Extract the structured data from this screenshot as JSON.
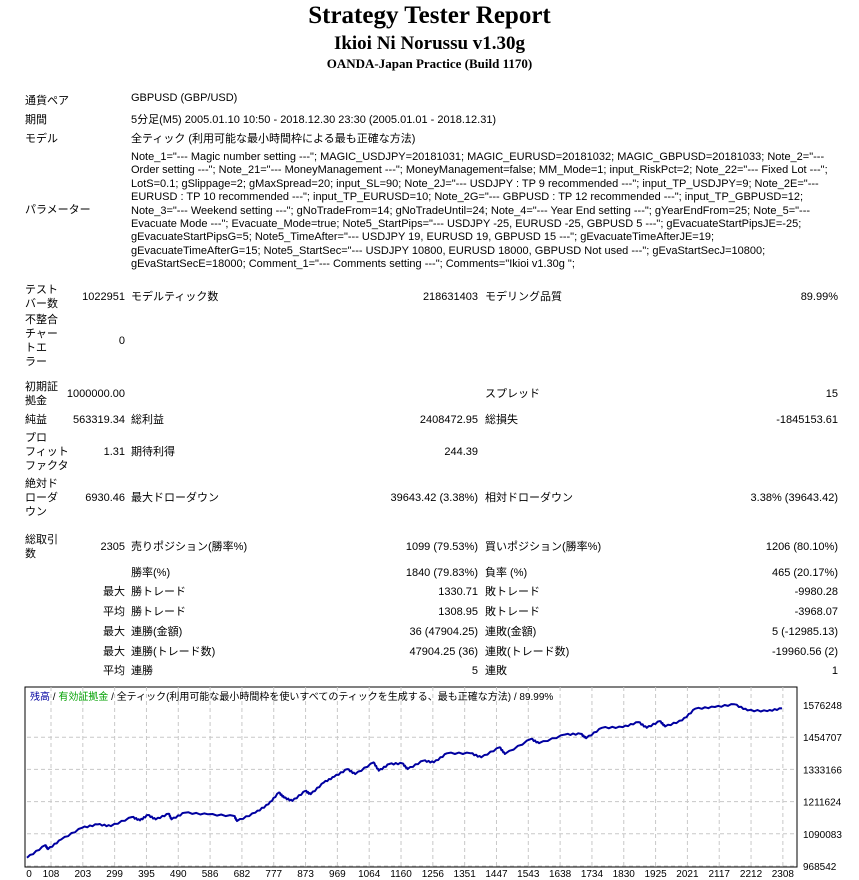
{
  "header": {
    "title": "Strategy Tester Report",
    "ea_name": "Ikioi Ni Norussu v1.30g",
    "server": "OANDA-Japan Practice (Build 1170)"
  },
  "info": {
    "symbol_label": "通貨ペア",
    "symbol": "GBPUSD (GBP/USD)",
    "period_label": "期間",
    "period": "5分足(M5) 2005.01.10 10:50 - 2018.12.30 23:30 (2005.01.01 - 2018.12.31)",
    "model_label": "モデル",
    "model": "全ティック (利用可能な最小時間枠による最も正確な方法)",
    "params_label": "パラメーター",
    "params": "Note_1=\"--- Magic number setting ---\"; MAGIC_USDJPY=20181031; MAGIC_EURUSD=20181032; MAGIC_GBPUSD=20181033; Note_2=\"--- Order setting ---\"; Note_21=\"--- MoneyManagement ---\"; MoneyManagement=false; MM_Mode=1; input_RiskPct=2; Note_22=\"--- Fixed Lot ---\"; LotS=0.1; gSlippage=2; gMaxSpread=20; input_SL=90; Note_2J=\"--- USDJPY : TP 9 recommended ---\"; input_TP_USDJPY=9; Note_2E=\"--- EURUSD : TP 10 recommended ---\"; input_TP_EURUSD=10; Note_2G=\"--- GBPUSD : TP 12 recommended ---\"; input_TP_GBPUSD=12; Note_3=\"--- Weekend setting ---\"; gNoTradeFrom=14; gNoTradeUntil=24; Note_4=\"--- Year End setting ---\"; gYearEndFrom=25; Note_5=\"--- Evacuate Mode ---\"; Evacuate_Mode=true; Note5_StartPips=\"--- USDJPY -25, EURUSD -25, GBPUSD 5 ---\"; gEvacuateStartPipsJE=-25; gEvacuateStartPipsG=5; Note5_TimeAfter=\"--- USDJPY 19, EURUSD 19, GBPUSD 15 ---\"; gEvacuateTimeAfterJE=19; gEvacuateTimeAfterG=15; Note5_StartSec=\"--- USDJPY 10800, EURUSD 18000, GBPUSD Not used ---\"; gEvaStartSecJ=10800; gEvaStartSecE=18000; Comment_1=\"--- Comments setting ---\"; Comments=\"Ikioi v1.30g \";"
  },
  "stats": [
    [
      "テスト\nバー数",
      "1022951",
      "モデルティック数",
      "218631403",
      "モデリング品質",
      "89.99%"
    ],
    [
      "不整合\nチャー\nトエ\nラー",
      "0",
      "",
      "",
      "",
      ""
    ],
    [
      "初期証\n拠金",
      "1000000.00",
      "",
      "",
      "スプレッド",
      "15"
    ],
    [
      "純益",
      "563319.34",
      "総利益",
      "2408472.95",
      "総損失",
      "-1845153.61"
    ],
    [
      "プロ\nフィット\nファクタ",
      "1.31",
      "期待利得",
      "244.39",
      "",
      ""
    ],
    [
      "絶対ド\nローダ\nウン",
      "6930.46",
      "最大ドローダウン",
      "39643.42 (3.38%)",
      "相対ドローダウン",
      "3.38% (39643.42)"
    ],
    [
      "総取引\n数",
      "2305",
      "売りポジション(勝率%)",
      "1099 (79.53%)",
      "買いポジション(勝率%)",
      "1206 (80.10%)"
    ],
    [
      "",
      "",
      "勝率(%)",
      "1840 (79.83%)",
      "負率 (%)",
      "465 (20.17%)"
    ],
    [
      "",
      "最大",
      "勝トレード",
      "1330.71",
      "敗トレード",
      "-9980.28"
    ],
    [
      "",
      "平均",
      "勝トレード",
      "1308.95",
      "敗トレード",
      "-3968.07"
    ],
    [
      "",
      "最大",
      "連勝(金額)",
      "36 (47904.25)",
      "連敗(金額)",
      "5 (-12985.13)"
    ],
    [
      "",
      "最大",
      "連勝(トレード数)",
      "47904.25 (36)",
      "連敗(トレード数)",
      "-19960.56 (2)"
    ],
    [
      "",
      "平均",
      "連勝",
      "5",
      "連敗",
      "1"
    ]
  ],
  "chart_legend": {
    "balance": "残高",
    "sep": " / ",
    "equity": "有効証拠金",
    "model": "全ティック(利用可能な最小時間枠を使いすべてのティックを生成する、最も正確な方法)",
    "quality": "89.99%"
  },
  "colors": {
    "balance": "#0000a0",
    "equity": "#00a000",
    "grid": "#c8c8c8"
  },
  "chart_data": {
    "type": "line",
    "xlim": [
      0,
      2308
    ],
    "ylim": [
      968542,
      1576248
    ],
    "x_ticks": [
      "0",
      "108",
      "203",
      "299",
      "395",
      "490",
      "586",
      "682",
      "777",
      "873",
      "969",
      "1064",
      "1160",
      "1256",
      "1351",
      "1447",
      "1543",
      "1638",
      "1734",
      "1830",
      "1925",
      "2021",
      "2117",
      "2212",
      "2308"
    ],
    "y_ticks": [
      "1576248",
      "1454707",
      "1333166",
      "1211624",
      "1090083",
      "968542"
    ],
    "grid": true,
    "series": [
      {
        "name": "残高",
        "points": [
          [
            0,
            1000000
          ],
          [
            56,
            1047000
          ],
          [
            64,
            1031800
          ],
          [
            104,
            1068600
          ],
          [
            168,
            1112900
          ],
          [
            216,
            1125500
          ],
          [
            256,
            1119200
          ],
          [
            321,
            1153400
          ],
          [
            345,
            1140700
          ],
          [
            369,
            1161000
          ],
          [
            393,
            1144500
          ],
          [
            433,
            1166000
          ],
          [
            441,
            1144500
          ],
          [
            481,
            1169800
          ],
          [
            553,
            1163500
          ],
          [
            633,
            1157200
          ],
          [
            641,
            1138200
          ],
          [
            697,
            1169800
          ],
          [
            737,
            1201500
          ],
          [
            769,
            1245800
          ],
          [
            785,
            1226800
          ],
          [
            810,
            1214100
          ],
          [
            850,
            1252100
          ],
          [
            866,
            1239500
          ],
          [
            906,
            1283800
          ],
          [
            938,
            1305300
          ],
          [
            978,
            1334400
          ],
          [
            1002,
            1315400
          ],
          [
            1058,
            1359700
          ],
          [
            1074,
            1328100
          ],
          [
            1106,
            1353400
          ],
          [
            1146,
            1355900
          ],
          [
            1162,
            1334400
          ],
          [
            1210,
            1366100
          ],
          [
            1242,
            1359700
          ],
          [
            1282,
            1393900
          ],
          [
            1355,
            1393900
          ],
          [
            1387,
            1378700
          ],
          [
            1443,
            1416700
          ],
          [
            1459,
            1391400
          ],
          [
            1539,
            1448400
          ],
          [
            1563,
            1431900
          ],
          [
            1643,
            1464800
          ],
          [
            1691,
            1467300
          ],
          [
            1707,
            1450900
          ],
          [
            1755,
            1490100
          ],
          [
            1819,
            1492700
          ],
          [
            1867,
            1511700
          ],
          [
            1892,
            1490100
          ],
          [
            1932,
            1515500
          ],
          [
            1948,
            1495200
          ],
          [
            2000,
            1518000
          ],
          [
            2040,
            1562300
          ],
          [
            2100,
            1568600
          ],
          [
            2160,
            1578800
          ],
          [
            2200,
            1556000
          ],
          [
            2260,
            1553400
          ],
          [
            2305,
            1563319
          ]
        ]
      }
    ]
  }
}
